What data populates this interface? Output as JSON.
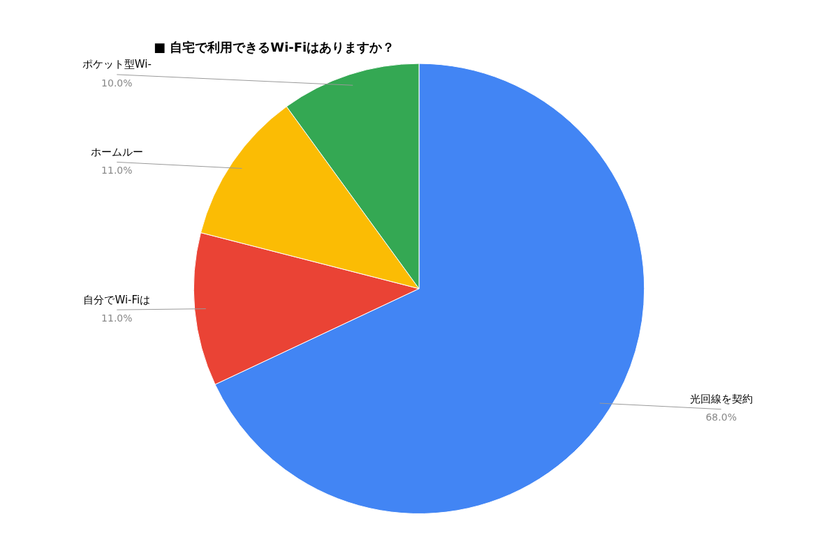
{
  "chart_data": {
    "type": "pie",
    "title": "■ 自宅で利用できるWi-Fiはありますか？",
    "categories": [
      "光回線を契約",
      "自分でWi-Fiは",
      "ホームルー",
      "ポケット型Wi-"
    ],
    "values": [
      68.0,
      11.0,
      11.0,
      10.0
    ],
    "value_labels": [
      "68.0%",
      "11.0%",
      "11.0%",
      "10.0%"
    ],
    "colors": [
      "#4285F4",
      "#EA4335",
      "#FBBC04",
      "#34A853"
    ],
    "data_labels": true
  }
}
